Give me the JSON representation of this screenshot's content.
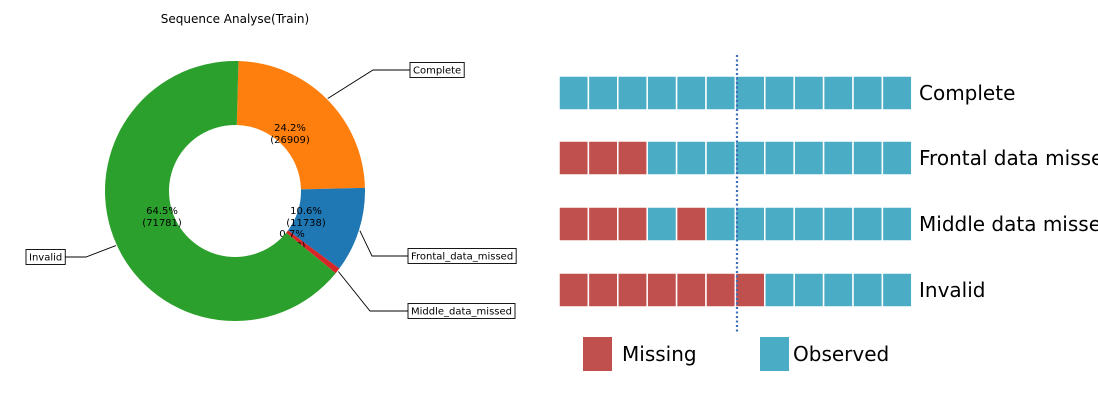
{
  "chart_data": [
    {
      "type": "pie",
      "variant": "donut",
      "title": "Sequence Analyse(Train)",
      "slices": [
        {
          "label": "Complete",
          "percent_label": "24.2%",
          "count_label": "(26909)",
          "value": 26909,
          "color": "#ff7f0e"
        },
        {
          "label": "Frontal_data_missed",
          "percent_label": "10.6%",
          "count_label": "(11738)",
          "value": 11738,
          "color": "#1f77b4"
        },
        {
          "label": "Middle_data_missed",
          "percent_label": "0.7%",
          "count_label": "(808)",
          "value": 808,
          "color": "#d62728"
        },
        {
          "label": "Invalid",
          "percent_label": "64.5%",
          "count_label": "(71781)",
          "value": 71781,
          "color": "#2ca02c"
        }
      ]
    },
    {
      "type": "diagram",
      "cells_per_row": 12,
      "rows": [
        {
          "label": "Complete",
          "missing_cells": []
        },
        {
          "label": "Frontal data missed",
          "missing_cells": [
            0,
            1,
            2
          ]
        },
        {
          "label": "Middle data missed",
          "missing_cells": [
            0,
            1,
            2,
            4
          ]
        },
        {
          "label": "Invalid",
          "missing_cells": [
            0,
            1,
            2,
            3,
            4,
            5,
            6
          ]
        }
      ],
      "divider_after_cell": 6,
      "legend": [
        {
          "label": "Missing",
          "color": "#c0504d"
        },
        {
          "label": "Observed",
          "color": "#4bacc6"
        }
      ]
    }
  ]
}
